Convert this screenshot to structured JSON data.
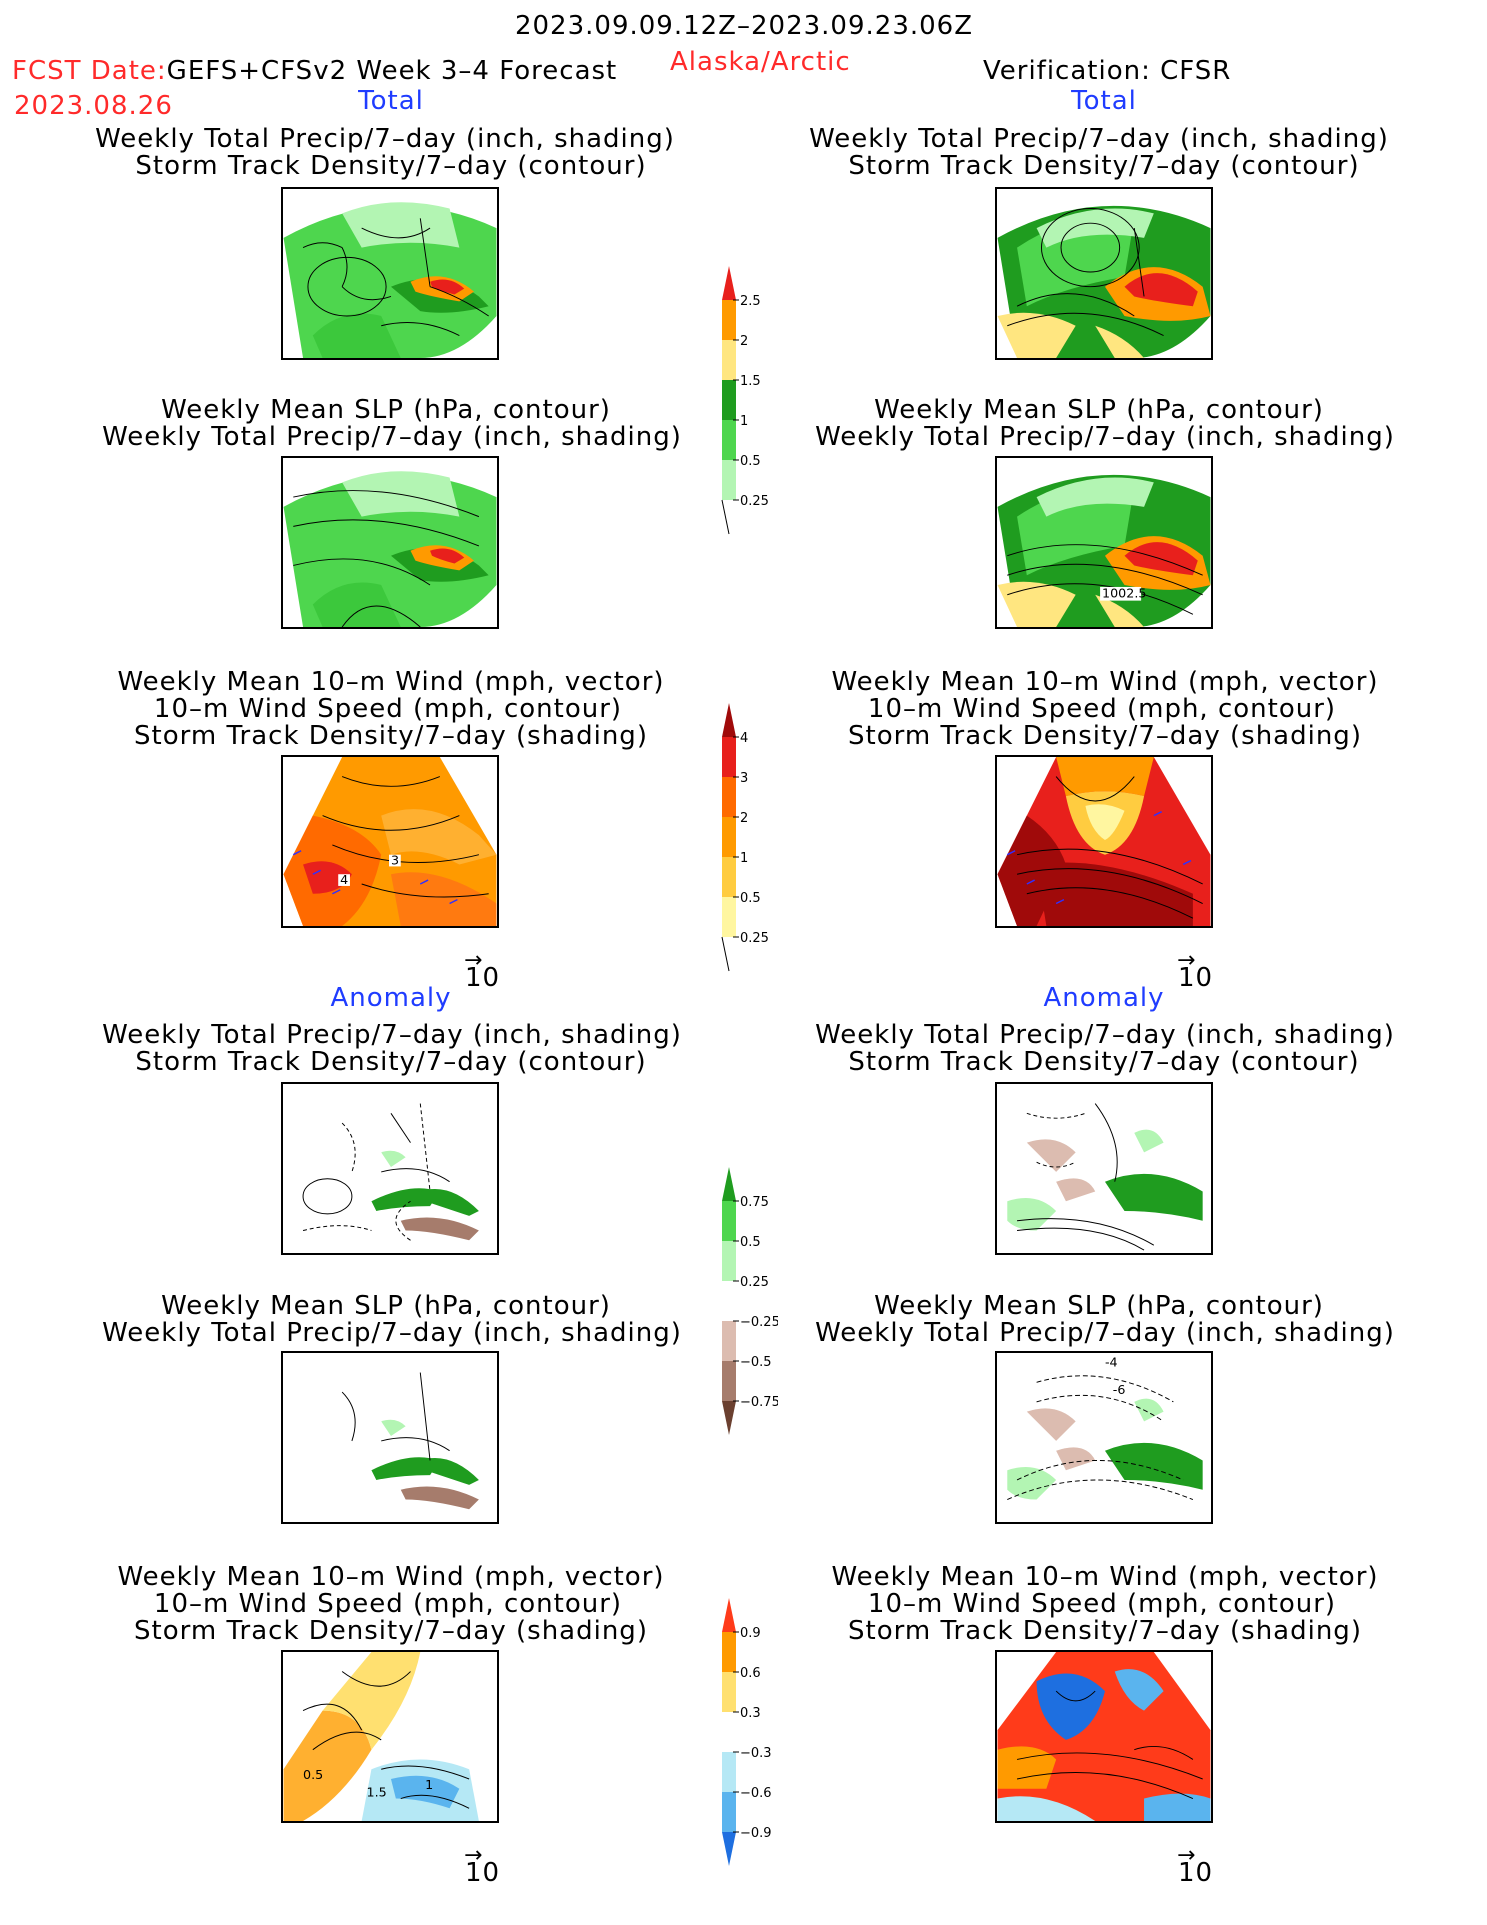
{
  "header": {
    "period": "2023.09.09.12Z–2023.09.23.06Z",
    "fcst_prefix": "FCST Date:",
    "model": "GEFS+CFSv2 Week 3–4 Forecast",
    "region": "Alaska/Arctic",
    "verification": "Verification: CFSR",
    "fcst_date": "2023.08.26"
  },
  "sections": {
    "total_left": "Total",
    "total_right": "Total",
    "anomaly_left": "Anomaly",
    "anomaly_right": "Anomaly"
  },
  "titles": {
    "precip_storm": [
      "Weekly Total Precip/7–day (inch, shading)",
      "Storm Track Density/7–day (contour)"
    ],
    "slp_precip": [
      "Weekly Mean SLP (hPa, contour)",
      "Weekly Total Precip/7–day (inch, shading)"
    ],
    "wind_storm": [
      "Weekly Mean 10–m Wind (mph, vector)",
      "10–m Wind Speed (mph, contour)",
      "Storm Track Density/7–day (shading)"
    ]
  },
  "vector_ref": "10",
  "map_labels": {
    "wind_total_left_a": "4",
    "wind_total_left_b": "3",
    "slp_total_right": "1002.5",
    "slp_anom_right_a": "-4",
    "slp_anom_right_b": "-6",
    "wind_anom_left_a": "0.5",
    "wind_anom_left_b": "1.5",
    "wind_anom_left_c": "1"
  },
  "colorbars": {
    "precip_total": {
      "labels": [
        "2.5",
        "2",
        "1.5",
        "1",
        "0.5",
        "0.25"
      ],
      "colors": [
        "#e8201c",
        "#ff9a00",
        "#ffe680",
        "#1f9c1f",
        "#4ed64e",
        "#b3f5b3"
      ]
    },
    "storm_total": {
      "labels": [
        "4",
        "3",
        "2",
        "1",
        "0.5",
        "0.25"
      ],
      "colors": [
        "#a00a0a",
        "#e8201c",
        "#ff6a00",
        "#ff9a00",
        "#ffcc40",
        "#fff6a0"
      ]
    },
    "precip_anom": {
      "labels": [
        "0.75",
        "0.5",
        "0.25",
        "−0.25",
        "−0.5",
        "−0.75"
      ],
      "colors": [
        "#1f9c1f",
        "#4ed64e",
        "#b3f5b3",
        "#ffffff",
        "#dcbcb0",
        "#a67c6c",
        "#6b4030"
      ]
    },
    "storm_anom": {
      "labels": [
        "0.9",
        "0.6",
        "0.3",
        "−0.3",
        "−0.6",
        "−0.9"
      ],
      "colors": [
        "#ff3b1a",
        "#ff9a00",
        "#ffe070",
        "#ffffff",
        "#b5e8f5",
        "#5ab4ee",
        "#1e6fe0"
      ]
    }
  }
}
